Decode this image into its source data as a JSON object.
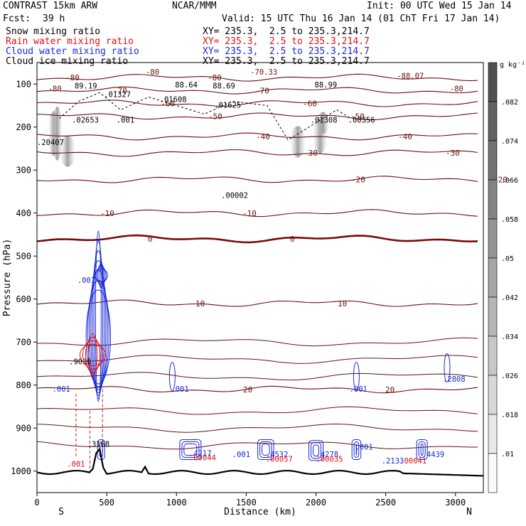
{
  "header": {
    "model": "CONTRAST 15km ARW",
    "center": "NCAR/MMM",
    "init": "Init: 00 UTC Wed 15 Jan 14",
    "fcst_label": "Fcst:",
    "fcst_value": "39 h",
    "valid": "Valid: 15 UTC Thu 16 Jan 14 (01 ChT Fri 17 Jan 14)",
    "fields": [
      {
        "name": "Snow mixing ratio",
        "xy": "XY= 235.3,  2.5 to 235.3,214.7",
        "color": "#000000"
      },
      {
        "name": "Rain water mixing ratio",
        "xy": "XY= 235.3,  2.5 to 235.3,214.7",
        "color": "#e01010"
      },
      {
        "name": "Cloud water mixing ratio",
        "xy": "XY= 235.3,  2.5 to 235.3,214.7",
        "color": "#1a2bd8"
      },
      {
        "name": "Cloud ice mixing ratio",
        "xy": "XY= 235.3,  2.5 to 235.3,214.7",
        "color": "#000000"
      }
    ]
  },
  "chart_data": {
    "type": "contour-cross-section",
    "xlabel": "Distance (km)",
    "ylabel": "Pressure (hPa)",
    "x_ticks": [
      0,
      500,
      1000,
      1500,
      2000,
      2500,
      3000
    ],
    "xlim": [
      0,
      3200
    ],
    "y_ticks": [
      100,
      200,
      300,
      400,
      500,
      600,
      700,
      800,
      900,
      1000
    ],
    "ylim": [
      50,
      1050
    ],
    "x_end_labels": {
      "left": "S",
      "right": "N"
    },
    "colorbar": {
      "unit": "g kg⁻¹",
      "ticks": [
        ".082",
        ".074",
        ".066",
        ".058",
        ".05",
        ".042",
        ".034",
        ".026",
        ".018",
        ".01"
      ]
    },
    "temperature_contours": [
      {
        "label": "-80",
        "p": 85,
        "color": "#6b1010"
      },
      {
        "label": "-70",
        "p": 115,
        "color": "#6b1010"
      },
      {
        "label": "-60",
        "p": 145,
        "color": "#6b1010"
      },
      {
        "label": "-50",
        "p": 175,
        "color": "#6b1010"
      },
      {
        "label": "-40",
        "p": 222,
        "color": "#6b1010"
      },
      {
        "label": "-30",
        "p": 260,
        "color": "#6b1010"
      },
      {
        "label": "-20",
        "p": 322,
        "color": "#6b1010"
      },
      {
        "label": "-10",
        "p": 400,
        "color": "#6b1010"
      },
      {
        "label": "0",
        "p": 460,
        "color": "#7a0c0c"
      },
      {
        "label": "10",
        "p": 610,
        "color": "#6b1010"
      },
      {
        "label": "20",
        "p": 810,
        "color": "#6b1010"
      }
    ],
    "annotations": [
      {
        "text": "89.19",
        "x": 270,
        "p": 110,
        "color": "#000000"
      },
      {
        "text": "88.64",
        "x": 990,
        "p": 108,
        "color": "#000000"
      },
      {
        "text": "88.69",
        "x": 1260,
        "p": 110,
        "color": "#000000"
      },
      {
        "text": "88.99",
        "x": 1990,
        "p": 108,
        "color": "#000000"
      },
      {
        "text": "-88.07",
        "x": 2580,
        "p": 87,
        "color": "#6b1010"
      },
      {
        "text": "-80",
        "x": 780,
        "p": 78,
        "color": "#6b1010"
      },
      {
        "text": "-80",
        "x": 80,
        "p": 117,
        "color": "#6b1010"
      },
      {
        "text": "-80",
        "x": 2960,
        "p": 117,
        "color": "#6b1010"
      },
      {
        "text": "-70.33",
        "x": 1530,
        "p": 78,
        "color": "#6b1010"
      },
      {
        "text": ".01327",
        "x": 480,
        "p": 130,
        "color": "#000000"
      },
      {
        "text": ".01608",
        "x": 880,
        "p": 142,
        "color": "#000000"
      },
      {
        "text": ".01625",
        "x": 1270,
        "p": 155,
        "color": "#000000"
      },
      {
        "text": ".02653",
        "x": 250,
        "p": 190,
        "color": "#000000"
      },
      {
        "text": ".001",
        "x": 570,
        "p": 190,
        "color": "#000000"
      },
      {
        "text": ".01308",
        "x": 1960,
        "p": 190,
        "color": "#000000"
      },
      {
        "text": ".00356",
        "x": 2230,
        "p": 190,
        "color": "#000000"
      },
      {
        "text": ".20407",
        "x": 0,
        "p": 242,
        "color": "#000000"
      },
      {
        "text": ".00002",
        "x": 1320,
        "p": 365,
        "color": "#000000"
      },
      {
        "text": ".001",
        "x": 290,
        "p": 562,
        "color": "#1a2bd8"
      },
      {
        "text": ".9036",
        "x": 230,
        "p": 752,
        "color": "#000000"
      },
      {
        "text": ".001",
        "x": 110,
        "p": 815,
        "color": "#1a2bd8"
      },
      {
        "text": ".001",
        "x": 960,
        "p": 815,
        "color": "#1a2bd8"
      },
      {
        "text": ".001",
        "x": 2240,
        "p": 815,
        "color": "#1a2bd8"
      },
      {
        "text": ".2808",
        "x": 2910,
        "p": 792,
        "color": "#1a2bd8"
      },
      {
        "text": ".3168",
        "x": 360,
        "p": 943,
        "color": "#000000"
      },
      {
        "text": ".001",
        "x": 215,
        "p": 990,
        "color": "#e01010"
      },
      {
        "text": ".001",
        "x": 1400,
        "p": 967,
        "color": "#1a2bd8"
      },
      {
        "text": ".001",
        "x": 2280,
        "p": 950,
        "color": "#1a2bd8"
      },
      {
        "text": ".00044",
        "x": 1090,
        "p": 975,
        "color": "#e01010"
      },
      {
        "text": ".4217",
        "x": 1090,
        "p": 965,
        "color": "#1a2bd8"
      },
      {
        "text": ".4532",
        "x": 1640,
        "p": 967,
        "color": "#1a2bd8"
      },
      {
        "text": ".00057",
        "x": 1640,
        "p": 978,
        "color": "#e01010"
      },
      {
        "text": ".4278",
        "x": 2000,
        "p": 967,
        "color": "#1a2bd8"
      },
      {
        "text": ".00035",
        "x": 2000,
        "p": 978,
        "color": "#e01010"
      },
      {
        "text": ".2133",
        "x": 2470,
        "p": 982,
        "color": "#1a2bd8"
      },
      {
        "text": ".00041",
        "x": 2600,
        "p": 982,
        "color": "#e01010"
      },
      {
        "text": ".4439",
        "x": 2760,
        "p": 967,
        "color": "#1a2bd8"
      }
    ]
  }
}
